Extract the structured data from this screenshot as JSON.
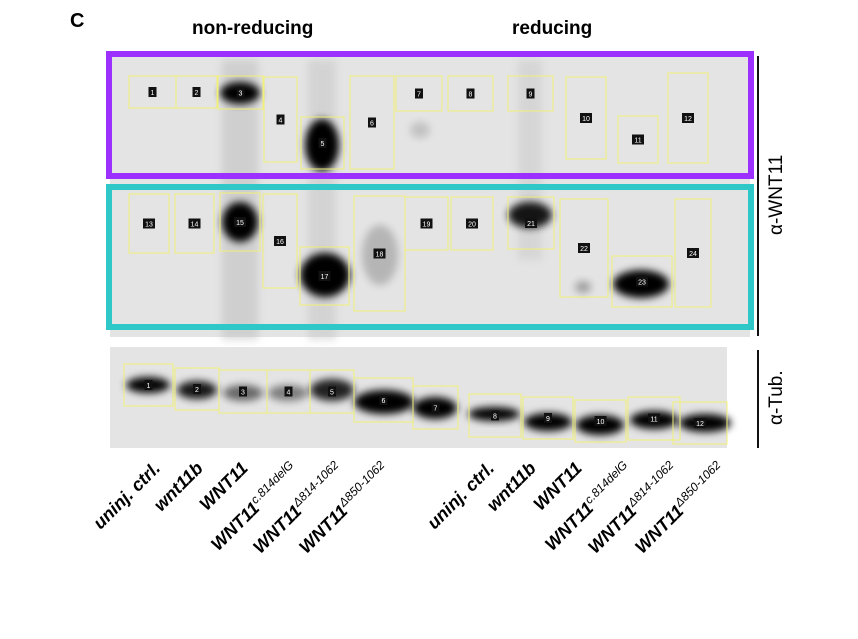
{
  "panel_letter": "C",
  "conditions": {
    "non_reducing": "non-reducing",
    "reducing": "reducing"
  },
  "antibodies": {
    "wnt11": "α-WNT11",
    "tubulin": "α-Tub."
  },
  "colors": {
    "wnt11_upper_frame": "#9b30ff",
    "wnt11_lower_frame": "#2ec8c8",
    "roi_box": "#f0f07a",
    "gel_bg": "#e4e4e4"
  },
  "wnt11_upper_boxes": [
    "1",
    "2",
    "3",
    "4",
    "5",
    "6",
    "7",
    "8",
    "9",
    "10",
    "11",
    "12"
  ],
  "wnt11_lower_boxes": [
    "13",
    "14",
    "15",
    "16",
    "17",
    "18",
    "19",
    "20",
    "21",
    "22",
    "23",
    "24"
  ],
  "tubulin_boxes": [
    "1",
    "2",
    "3",
    "4",
    "5",
    "6",
    "7",
    "8",
    "9",
    "10",
    "11",
    "12"
  ],
  "lanes": [
    {
      "base": "uninj. ctrl.",
      "sup": ""
    },
    {
      "base": "wnt11b",
      "sup": ""
    },
    {
      "base": "WNT11",
      "sup": ""
    },
    {
      "base": "WNT11",
      "sup": "c.814delG"
    },
    {
      "base": "WNT11",
      "sup": "Δ814-1062"
    },
    {
      "base": "WNT11",
      "sup": "Δ850-1062"
    },
    {
      "base": "uninj. ctrl.",
      "sup": ""
    },
    {
      "base": "wnt11b",
      "sup": ""
    },
    {
      "base": "WNT11",
      "sup": ""
    },
    {
      "base": "WNT11",
      "sup": "c.814delG"
    },
    {
      "base": "WNT11",
      "sup": "Δ814-1062"
    },
    {
      "base": "WNT11",
      "sup": "Δ850-1062"
    }
  ]
}
